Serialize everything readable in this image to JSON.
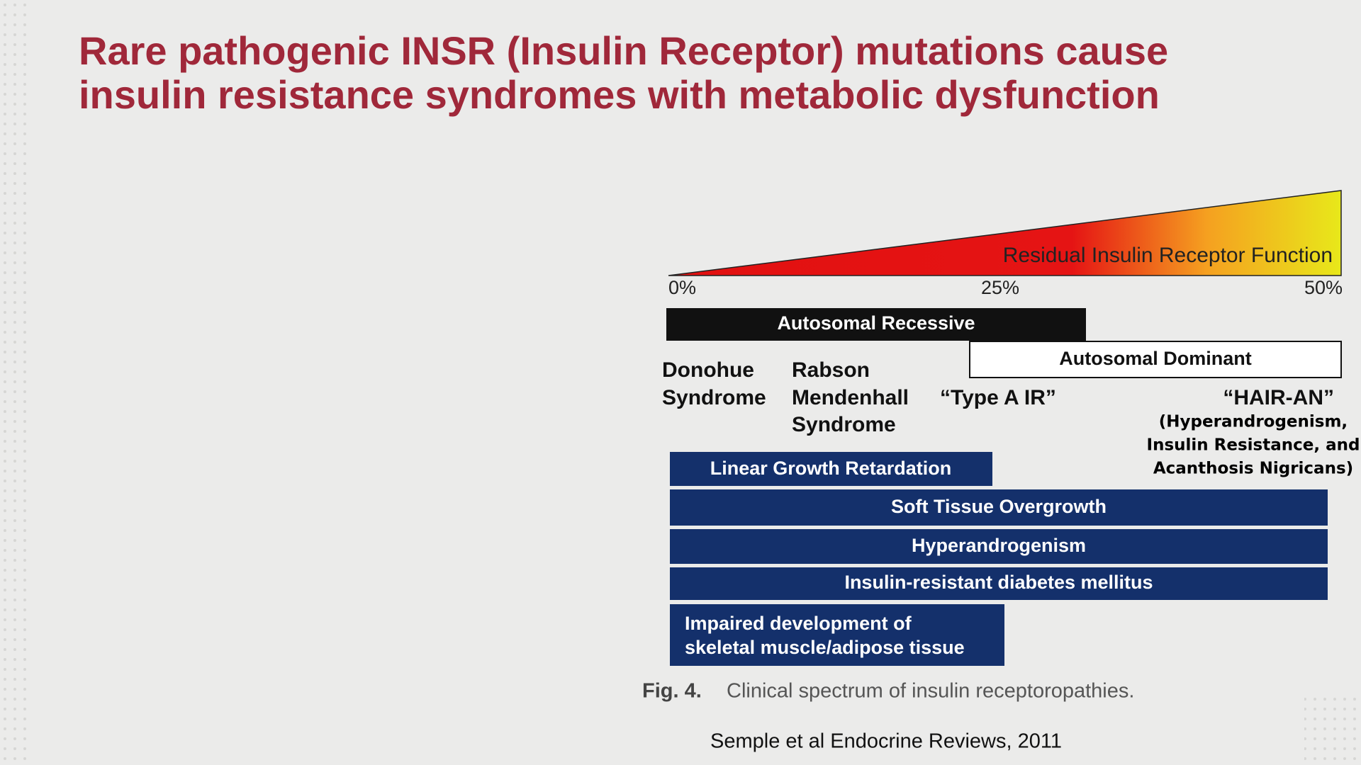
{
  "header": {
    "title": [
      "Rare pathogenic INSR (Insulin Receptor) mutations cause",
      "insulin resistance syndromes with metabolic dysfunction"
    ]
  },
  "figure": {
    "scale_label": "Residual Insulin Receptor Function",
    "scale_ticks": [
      "0%",
      "25%",
      "50%"
    ],
    "inheritance": [
      "Autosomal Recessive",
      "Autosomal Dominant"
    ],
    "syndromes": [
      {
        "lines": [
          "Donohue",
          "Syndrome"
        ]
      },
      {
        "lines": [
          "Rabson",
          "Mendenhall",
          "Syndrome"
        ]
      },
      {
        "lines": [
          "“Type  A IR”"
        ]
      },
      {
        "lines": [
          "“HAIR-AN”"
        ]
      }
    ],
    "hairan_note": [
      "(Hyperandrogenism,",
      "Insulin Resistance, and",
      "Acanthosis Nigricans)"
    ],
    "features": [
      [
        "Linear Growth Retardation"
      ],
      [
        "Soft Tissue Overgrowth"
      ],
      [
        "Hyperandrogenism"
      ],
      [
        "Insulin-resistant diabetes mellitus"
      ],
      [
        "Impaired development  of",
        "skeletal muscle/adipose tissue"
      ]
    ],
    "caption": {
      "label": "Fig.  4.",
      "text": "Clinical spectrum of insulin receptoropathies."
    }
  },
  "citation": "Semple et al Endocrine Reviews, 2011"
}
